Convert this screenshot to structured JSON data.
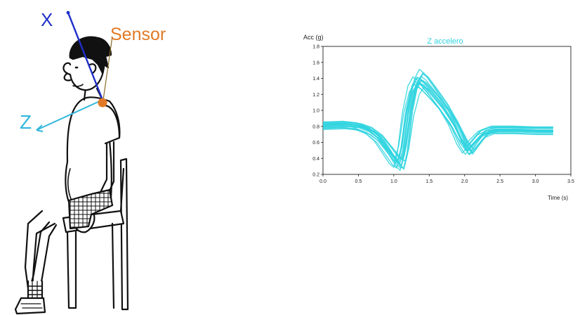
{
  "illustration": {
    "axis_x_label": "X",
    "axis_z_label": "Z",
    "sensor_label": "Sensor",
    "colors": {
      "x_axis": "#1f2fc8",
      "z_axis": "#33b7dd",
      "sensor": "#e07a26",
      "outline": "#111111"
    }
  },
  "chart_data": {
    "type": "line",
    "title": "Z accelero",
    "ylabel": "Acc (g)",
    "xlabel": "Time (s)",
    "xlim": [
      0,
      3.5
    ],
    "ylim": [
      0.2,
      1.8
    ],
    "xticks": [
      "0.0",
      "0.5",
      "1.0",
      "1.5",
      "2.0",
      "2.5",
      "3.0",
      "3.5"
    ],
    "yticks": [
      "0.2",
      "0.4",
      "0.6",
      "0.8",
      "1.0",
      "1.2",
      "1.4",
      "1.6",
      "1.8"
    ],
    "color": "#2ed3df",
    "base_curve": [
      [
        0.0,
        0.8
      ],
      [
        0.3,
        0.81
      ],
      [
        0.5,
        0.79
      ],
      [
        0.65,
        0.74
      ],
      [
        0.8,
        0.64
      ],
      [
        0.92,
        0.5
      ],
      [
        1.02,
        0.38
      ],
      [
        1.08,
        0.34
      ],
      [
        1.13,
        0.5
      ],
      [
        1.2,
        0.95
      ],
      [
        1.28,
        1.25
      ],
      [
        1.35,
        1.35
      ],
      [
        1.42,
        1.31
      ],
      [
        1.55,
        1.18
      ],
      [
        1.7,
        1.02
      ],
      [
        1.85,
        0.82
      ],
      [
        1.97,
        0.6
      ],
      [
        2.05,
        0.5
      ],
      [
        2.13,
        0.58
      ],
      [
        2.25,
        0.7
      ],
      [
        2.4,
        0.75
      ],
      [
        2.7,
        0.75
      ],
      [
        3.0,
        0.74
      ],
      [
        3.25,
        0.74
      ]
    ],
    "trial_variations": [
      {
        "dt": 0.0,
        "dy": 0.0,
        "amp": 1.0
      },
      {
        "dt": 0.03,
        "dy": 0.02,
        "amp": 1.1
      },
      {
        "dt": -0.03,
        "dy": -0.02,
        "amp": 0.95
      },
      {
        "dt": 0.06,
        "dy": 0.01,
        "amp": 1.18
      },
      {
        "dt": -0.06,
        "dy": 0.03,
        "amp": 0.9
      },
      {
        "dt": 0.02,
        "dy": -0.04,
        "amp": 1.05
      },
      {
        "dt": -0.02,
        "dy": 0.05,
        "amp": 1.02
      },
      {
        "dt": 0.08,
        "dy": -0.01,
        "amp": 0.92
      },
      {
        "dt": -0.08,
        "dy": 0.0,
        "amp": 1.12
      },
      {
        "dt": 0.04,
        "dy": 0.04,
        "amp": 0.98
      },
      {
        "dt": -0.04,
        "dy": -0.03,
        "amp": 1.07
      },
      {
        "dt": 0.01,
        "dy": 0.02,
        "amp": 1.25
      }
    ]
  }
}
